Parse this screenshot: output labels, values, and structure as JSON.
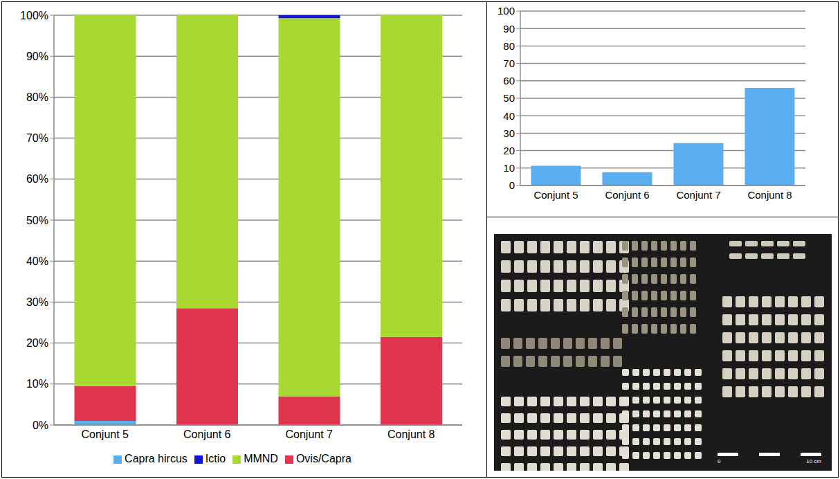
{
  "chart_data": [
    {
      "type": "bar",
      "stacked": true,
      "categories": [
        "Conjunt 5",
        "Conjunt 6",
        "Conjunt 7",
        "Conjunt 8"
      ],
      "series": [
        {
          "name": "Capra hircus",
          "color": "#5aaee8",
          "values": [
            1,
            0,
            0,
            0
          ]
        },
        {
          "name": "Ovis/Capra",
          "color": "#e0354f",
          "values": [
            8.5,
            28.5,
            7,
            21.5
          ]
        },
        {
          "name": "MMND",
          "color": "#a8d932",
          "values": [
            90.5,
            71.5,
            92.3,
            78.5
          ]
        },
        {
          "name": "Ictio",
          "color": "#1515d8",
          "values": [
            0,
            0,
            0.7,
            0
          ]
        }
      ],
      "ylim": [
        0,
        100
      ],
      "yticks": [
        {
          "value": 0,
          "label": "0%"
        },
        {
          "value": 10,
          "label": "10%"
        },
        {
          "value": 20,
          "label": "20%"
        },
        {
          "value": 30,
          "label": "30%"
        },
        {
          "value": 40,
          "label": "40%"
        },
        {
          "value": 50,
          "label": "50%"
        },
        {
          "value": 60,
          "label": "60%"
        },
        {
          "value": 70,
          "label": "70%"
        },
        {
          "value": 80,
          "label": "80%"
        },
        {
          "value": 90,
          "label": "90%"
        },
        {
          "value": 100,
          "label": "100%"
        }
      ],
      "grid": true,
      "legend": "bottom"
    },
    {
      "type": "bar",
      "categories": [
        "Conjunt 5",
        "Conjunt 6",
        "Conjunt 7",
        "Conjunt 8"
      ],
      "values": [
        11.3,
        7.6,
        24.3,
        56
      ],
      "color": "#5aaeef",
      "ylim": [
        0,
        100
      ],
      "yticks": [
        0,
        10,
        20,
        30,
        40,
        50,
        60,
        70,
        80,
        90,
        100
      ],
      "grid": true
    }
  ],
  "photo": {
    "scale_bar": {
      "start": "0",
      "end": "10 cm"
    }
  }
}
